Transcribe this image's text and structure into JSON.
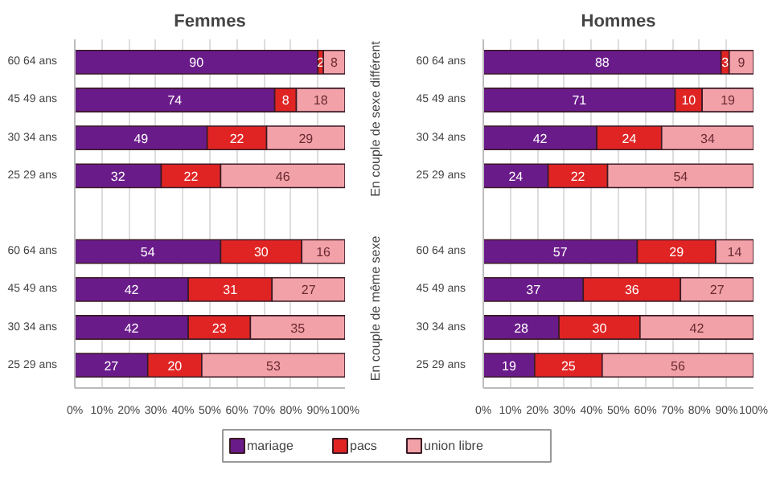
{
  "chart_data": [
    {
      "type": "bar",
      "title": "Femmes",
      "orientation": "horizontal",
      "stacked": true,
      "data_labels": true,
      "grid": "x",
      "legend": "bottom",
      "categories": [
        "60 64 ans",
        "45 49 ans",
        "30 34 ans",
        "25 29 ans",
        "60 64 ans",
        "45 49 ans",
        "30 34 ans",
        "25 29 ans"
      ],
      "xlim": [
        0,
        100
      ],
      "xticks": [
        {
          "value": 0,
          "label": "0%"
        },
        {
          "value": 10,
          "label": "10%"
        },
        {
          "value": 20,
          "label": "20%"
        },
        {
          "value": 30,
          "label": "30%"
        },
        {
          "value": 40,
          "label": "40%"
        },
        {
          "value": 50,
          "label": "50%"
        },
        {
          "value": 60,
          "label": "60%"
        },
        {
          "value": 70,
          "label": "70%"
        },
        {
          "value": 80,
          "label": "80%"
        },
        {
          "value": 90,
          "label": "90%"
        },
        {
          "value": 100,
          "label": "100%"
        }
      ],
      "series": [
        {
          "name": "mariage",
          "color": "#6a1b8a",
          "values": [
            90,
            74,
            49,
            32,
            54,
            42,
            42,
            27
          ]
        },
        {
          "name": "pacs",
          "color": "#e02424",
          "values": [
            2,
            8,
            22,
            22,
            30,
            31,
            23,
            20
          ]
        },
        {
          "name": "union libre",
          "color": "#f2a1a8",
          "values": [
            8,
            18,
            29,
            46,
            16,
            27,
            35,
            53
          ]
        }
      ]
    },
    {
      "type": "bar",
      "title": "Hommes",
      "orientation": "horizontal",
      "stacked": true,
      "data_labels": true,
      "grid": "x",
      "annotations": [
        "En couple de sexe différent",
        "En couple de même sexe"
      ],
      "categories": [
        "60 64 ans",
        "45 49 ans",
        "30 34 ans",
        "25 29 ans",
        "60 64 ans",
        "45 49 ans",
        "30 34 ans",
        "25 29 ans"
      ],
      "xlim": [
        0,
        100
      ],
      "xticks": [
        {
          "value": 0,
          "label": "0%"
        },
        {
          "value": 10,
          "label": "10%"
        },
        {
          "value": 20,
          "label": "20%"
        },
        {
          "value": 30,
          "label": "30%"
        },
        {
          "value": 40,
          "label": "40%"
        },
        {
          "value": 50,
          "label": "50%"
        },
        {
          "value": 60,
          "label": "60%"
        },
        {
          "value": 70,
          "label": "70%"
        },
        {
          "value": 80,
          "label": "80%"
        },
        {
          "value": 90,
          "label": "90%"
        },
        {
          "value": 100,
          "label": "100%"
        }
      ],
      "series": [
        {
          "color": "#6a1b8a",
          "values": [
            88,
            71,
            42,
            24,
            57,
            37,
            28,
            19
          ]
        },
        {
          "color": "#e02424",
          "values": [
            3,
            10,
            24,
            22,
            29,
            36,
            30,
            25
          ]
        },
        {
          "color": "#f2a1a8",
          "values": [
            9,
            19,
            34,
            54,
            14,
            27,
            42,
            56
          ]
        }
      ]
    }
  ]
}
